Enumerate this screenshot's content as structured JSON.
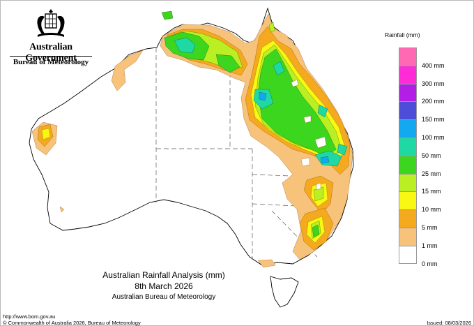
{
  "header": {
    "agency": "Australian Government",
    "bureau": "Bureau of Meteorology"
  },
  "title": {
    "main": "Australian Rainfall Analysis (mm)",
    "date": "8th March 2026",
    "source": "Australian Bureau of Meteorology"
  },
  "footer": {
    "url": "http://www.bom.gov.au",
    "copyright": "© Commonwealth of Australia 2026, Bureau of Meteorology",
    "issued": "Issued: 08/03/2026"
  },
  "legend": {
    "title": "Rainfall (mm)",
    "items": [
      {
        "label": "",
        "color": "#ff69b4"
      },
      {
        "label": "400 mm",
        "color": "#ff2bd6"
      },
      {
        "label": "300 mm",
        "color": "#b31ee6"
      },
      {
        "label": "200 mm",
        "color": "#4d4dd9"
      },
      {
        "label": "150 mm",
        "color": "#12a9f0"
      },
      {
        "label": "100 mm",
        "color": "#20d8a3"
      },
      {
        "label": "50 mm",
        "color": "#3cd61e"
      },
      {
        "label": "25 mm",
        "color": "#b9ef23"
      },
      {
        "label": "15 mm",
        "color": "#f9f714"
      },
      {
        "label": "10 mm",
        "color": "#f4a91e"
      },
      {
        "label": "5 mm",
        "color": "#f7c27a"
      },
      {
        "label": "1 mm",
        "color": "#ffffff"
      },
      {
        "label": "0 mm",
        "color": ""
      }
    ]
  },
  "colors": {
    "land_border": "#000000",
    "state_border": "#666666"
  }
}
